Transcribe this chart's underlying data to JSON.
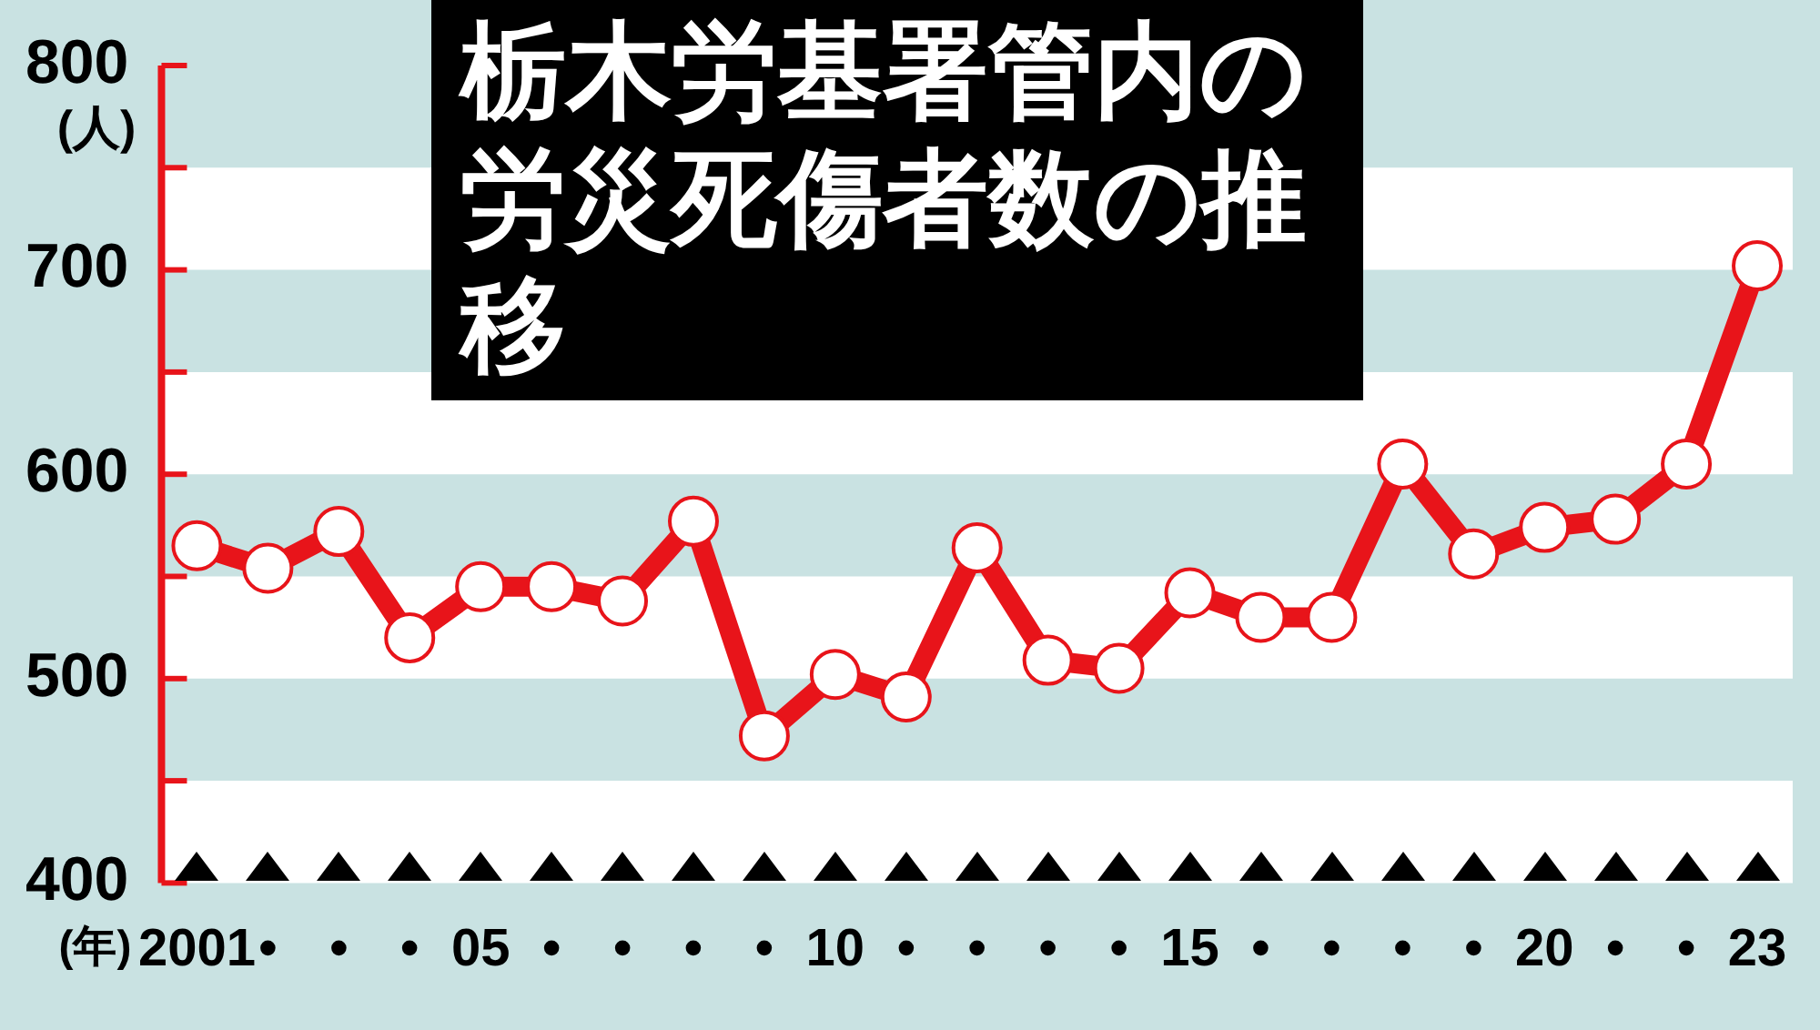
{
  "chart_data": {
    "type": "line",
    "title": "栃木労基署管内の労災死傷者数の推移",
    "xlabel": "(年)",
    "ylabel": "(人)",
    "categories": [
      "2001",
      "•",
      "•",
      "•",
      "05",
      "•",
      "•",
      "•",
      "•",
      "10",
      "•",
      "•",
      "•",
      "•",
      "15",
      "•",
      "•",
      "•",
      "•",
      "20",
      "•",
      "•",
      "23"
    ],
    "series": [
      {
        "color": "#e8141a",
        "values": [
          565,
          554,
          572,
          520,
          545,
          545,
          538,
          577,
          472,
          502,
          491,
          564,
          509,
          505,
          542,
          530,
          530,
          605,
          561,
          574,
          578,
          605,
          702
        ]
      }
    ],
    "ylim": [
      400,
      800
    ],
    "yticks": [
      400,
      {
        "value": 450,
        "label": null
      },
      500,
      {
        "value": 550,
        "label": null
      },
      600,
      {
        "value": 650,
        "label": null
      },
      700,
      {
        "value": 750,
        "label": null
      },
      800
    ],
    "bands": [
      {
        "axis": "y",
        "from": 400,
        "to": 450,
        "color": "#ffffff"
      },
      {
        "axis": "y",
        "from": 500,
        "to": 550,
        "color": "#ffffff"
      },
      {
        "axis": "y",
        "from": 600,
        "to": 650,
        "color": "#ffffff"
      },
      {
        "axis": "y",
        "from": 700,
        "to": 750,
        "color": "#ffffff"
      }
    ],
    "marker": "circle",
    "line_style": "solid"
  }
}
